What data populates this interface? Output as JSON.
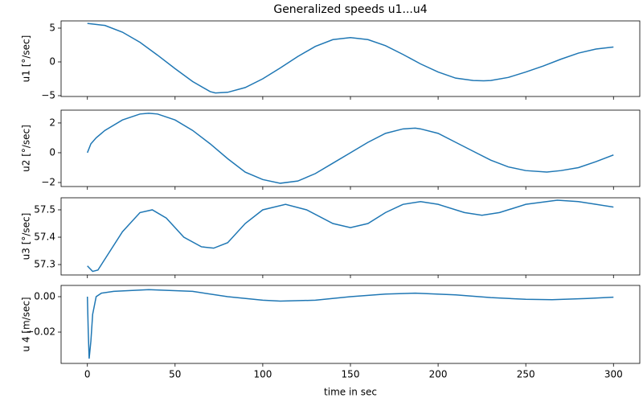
{
  "chart_data": [
    {
      "type": "line",
      "title": "Generalized speeds u1...u4",
      "ylabel": "u1 [°/sec]",
      "x": [
        0,
        10,
        20,
        30,
        40,
        50,
        60,
        70,
        73,
        80,
        90,
        100,
        110,
        120,
        130,
        140,
        150,
        160,
        170,
        180,
        190,
        200,
        210,
        220,
        226,
        230,
        240,
        250,
        260,
        270,
        280,
        290,
        300
      ],
      "values": [
        5.7,
        5.4,
        4.4,
        2.9,
        1.0,
        -1.0,
        -2.9,
        -4.4,
        -4.6,
        -4.5,
        -3.8,
        -2.5,
        -0.9,
        0.8,
        2.3,
        3.3,
        3.6,
        3.3,
        2.4,
        1.1,
        -0.3,
        -1.5,
        -2.4,
        -2.75,
        -2.8,
        -2.75,
        -2.3,
        -1.5,
        -0.6,
        0.4,
        1.3,
        1.9,
        2.2
      ],
      "color": "#1f77b4",
      "xlim": [
        -15,
        315
      ],
      "ylim": [
        -5.12,
        6.07
      ],
      "yticks": [
        {
          "value": -5,
          "label": "−5"
        },
        0,
        5
      ]
    },
    {
      "type": "line",
      "ylabel": "u2 [°/sec]",
      "x": [
        0,
        2,
        5,
        10,
        20,
        30,
        35,
        40,
        50,
        60,
        70,
        80,
        90,
        100,
        110,
        120,
        130,
        140,
        150,
        160,
        170,
        180,
        187,
        190,
        200,
        210,
        220,
        230,
        240,
        250,
        262,
        270,
        280,
        290,
        300
      ],
      "values": [
        0.0,
        0.6,
        1.0,
        1.5,
        2.2,
        2.6,
        2.65,
        2.6,
        2.2,
        1.5,
        0.6,
        -0.4,
        -1.3,
        -1.8,
        -2.05,
        -1.9,
        -1.4,
        -0.7,
        0.0,
        0.7,
        1.3,
        1.6,
        1.65,
        1.6,
        1.3,
        0.7,
        0.1,
        -0.5,
        -0.95,
        -1.2,
        -1.3,
        -1.2,
        -1.0,
        -0.6,
        -0.15
      ],
      "color": "#1f77b4",
      "xlim": [
        -15,
        315
      ],
      "ylim": [
        -2.27,
        2.86
      ],
      "yticks": [
        {
          "value": -2,
          "label": "−2"
        },
        0,
        2
      ]
    },
    {
      "type": "line",
      "ylabel": "u3 [°/sec]",
      "x": [
        0,
        3,
        6,
        10,
        20,
        30,
        37,
        45,
        55,
        65,
        72,
        80,
        90,
        100,
        113,
        125,
        140,
        150,
        160,
        170,
        180,
        190,
        200,
        215,
        225,
        235,
        250,
        268,
        280,
        290,
        300
      ],
      "values": [
        57.295,
        57.275,
        57.28,
        57.32,
        57.42,
        57.49,
        57.5,
        57.47,
        57.4,
        57.365,
        57.36,
        57.38,
        57.45,
        57.5,
        57.52,
        57.5,
        57.45,
        57.435,
        57.45,
        57.49,
        57.52,
        57.53,
        57.52,
        57.49,
        57.48,
        57.49,
        57.52,
        57.535,
        57.53,
        57.52,
        57.51
      ],
      "color": "#1f77b4",
      "xlim": [
        -15,
        315
      ],
      "ylim": [
        57.262,
        57.544
      ],
      "yticks": [
        57.3,
        57.4,
        57.5
      ]
    },
    {
      "type": "line",
      "ylabel": "u 4 [m/sec]",
      "xlabel": "time in sec",
      "x": [
        0,
        0.5,
        1,
        2,
        3,
        5,
        8,
        15,
        35,
        60,
        80,
        100,
        110,
        130,
        150,
        170,
        187,
        210,
        230,
        250,
        265,
        285,
        300
      ],
      "values": [
        0.0,
        -0.02,
        -0.035,
        -0.025,
        -0.01,
        0.0,
        0.002,
        0.003,
        0.004,
        0.003,
        0.0,
        -0.002,
        -0.0025,
        -0.002,
        0.0,
        0.0015,
        0.002,
        0.001,
        -0.0005,
        -0.0015,
        -0.0017,
        -0.001,
        -0.0003
      ],
      "color": "#1f77b4",
      "xlim": [
        -15,
        315
      ],
      "ylim": [
        -0.0377,
        0.00636
      ],
      "yticks": [
        {
          "value": -0.02,
          "label": "−0.02"
        },
        {
          "value": 0,
          "label": "0.00"
        }
      ],
      "xticks": [
        0,
        50,
        100,
        150,
        200,
        250,
        300
      ]
    }
  ]
}
